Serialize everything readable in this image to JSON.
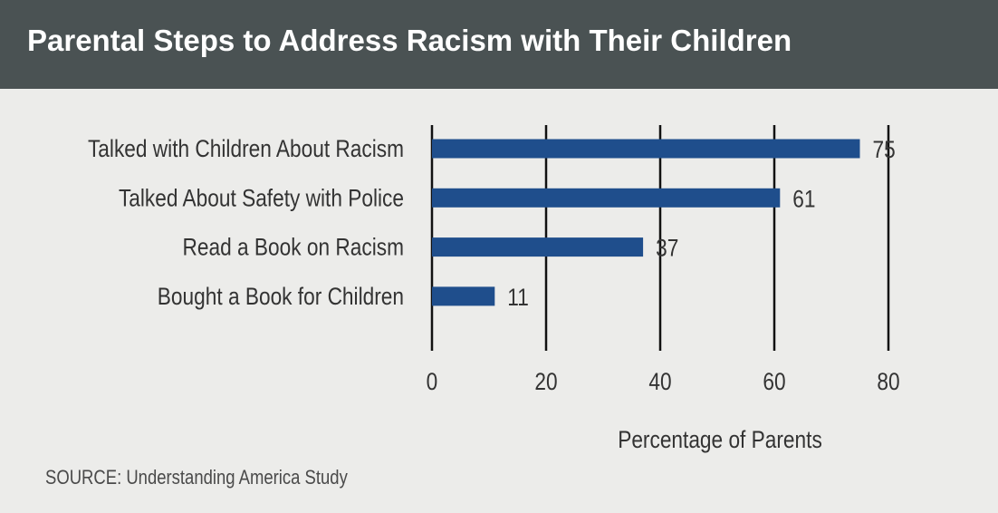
{
  "header": {
    "title": "Parental Steps to Address Racism with Their Children"
  },
  "footer": {
    "source": "SOURCE: Understanding America Study"
  },
  "colors": {
    "header_bg": "#4a5253",
    "bar": "#1f4e8c",
    "background": "#ececea",
    "gridline": "#111111"
  },
  "chart_data": {
    "type": "bar",
    "orientation": "horizontal",
    "title": "Parental Steps to Address Racism with Their Children",
    "categories": [
      "Talked with Children About Racism",
      "Talked About Safety with Police",
      "Read a Book on Racism",
      "Bought a Book for Children"
    ],
    "values": [
      75,
      61,
      37,
      11
    ],
    "xlabel": "Percentage of Parents",
    "ylabel": "",
    "xlim": [
      0,
      80
    ],
    "xticks": [
      0,
      20,
      40,
      60,
      80
    ],
    "grid": true,
    "data_labels": true
  }
}
